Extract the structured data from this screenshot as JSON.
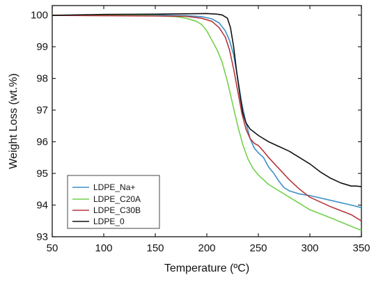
{
  "chart_data": {
    "type": "line",
    "xlabel": "Temperature (ºC)",
    "ylabel": "Weight Loss (wt.%)",
    "xlim": [
      50,
      350
    ],
    "ylim": [
      93,
      100.3
    ],
    "xticks": [
      50,
      100,
      150,
      200,
      250,
      300,
      350
    ],
    "yticks": [
      93,
      94,
      95,
      96,
      97,
      98,
      99,
      100
    ],
    "grid": false,
    "legend_position": "bottom-left",
    "series": [
      {
        "name": "LDPE_Na+",
        "color": "#3a8fc7",
        "x": [
          50,
          100,
          150,
          180,
          195,
          205,
          212,
          218,
          222,
          226,
          230,
          234,
          238,
          242,
          246,
          250,
          255,
          260,
          265,
          270,
          275,
          280,
          290,
          300,
          320,
          340,
          350
        ],
        "y": [
          99.99,
          100.0,
          100.0,
          99.98,
          99.95,
          99.88,
          99.75,
          99.5,
          99.2,
          98.75,
          98.0,
          97.2,
          96.6,
          96.1,
          95.8,
          95.65,
          95.5,
          95.2,
          95.0,
          94.75,
          94.55,
          94.45,
          94.35,
          94.3,
          94.15,
          94.0,
          93.92
        ]
      },
      {
        "name": "LDPE_C20A",
        "color": "#72d14a",
        "x": [
          50,
          100,
          150,
          170,
          180,
          190,
          195,
          200,
          205,
          210,
          215,
          220,
          225,
          230,
          235,
          240,
          245,
          250,
          255,
          260,
          270,
          280,
          290,
          300,
          320,
          340,
          350
        ],
        "y": [
          99.99,
          99.99,
          99.98,
          99.95,
          99.9,
          99.8,
          99.7,
          99.5,
          99.2,
          98.9,
          98.5,
          97.9,
          97.2,
          96.5,
          95.9,
          95.45,
          95.15,
          94.95,
          94.8,
          94.65,
          94.45,
          94.25,
          94.05,
          93.85,
          93.6,
          93.33,
          93.2
        ]
      },
      {
        "name": "LDPE_C30B",
        "color": "#b5353a",
        "x": [
          50,
          100,
          150,
          180,
          195,
          205,
          212,
          218,
          222,
          226,
          230,
          234,
          238,
          242,
          246,
          250,
          255,
          260,
          270,
          280,
          290,
          300,
          320,
          340,
          350
        ],
        "y": [
          99.99,
          99.98,
          99.97,
          99.96,
          99.9,
          99.8,
          99.6,
          99.3,
          98.9,
          98.3,
          97.6,
          96.9,
          96.4,
          96.1,
          95.95,
          95.88,
          95.7,
          95.5,
          95.15,
          94.8,
          94.5,
          94.25,
          93.95,
          93.7,
          93.5
        ]
      },
      {
        "name": "LDPE_0",
        "color": "#111111",
        "x": [
          50,
          100,
          150,
          180,
          200,
          210,
          215,
          220,
          223,
          226,
          229,
          232,
          235,
          238,
          242,
          246,
          250,
          260,
          270,
          280,
          290,
          300,
          310,
          320,
          330,
          340,
          345,
          350
        ],
        "y": [
          99.99,
          100.02,
          100.03,
          100.04,
          100.05,
          100.03,
          100.0,
          99.9,
          99.6,
          99.0,
          98.2,
          97.5,
          96.9,
          96.6,
          96.4,
          96.3,
          96.2,
          96.0,
          95.85,
          95.7,
          95.5,
          95.3,
          95.05,
          94.85,
          94.7,
          94.6,
          94.6,
          94.58
        ]
      }
    ]
  }
}
